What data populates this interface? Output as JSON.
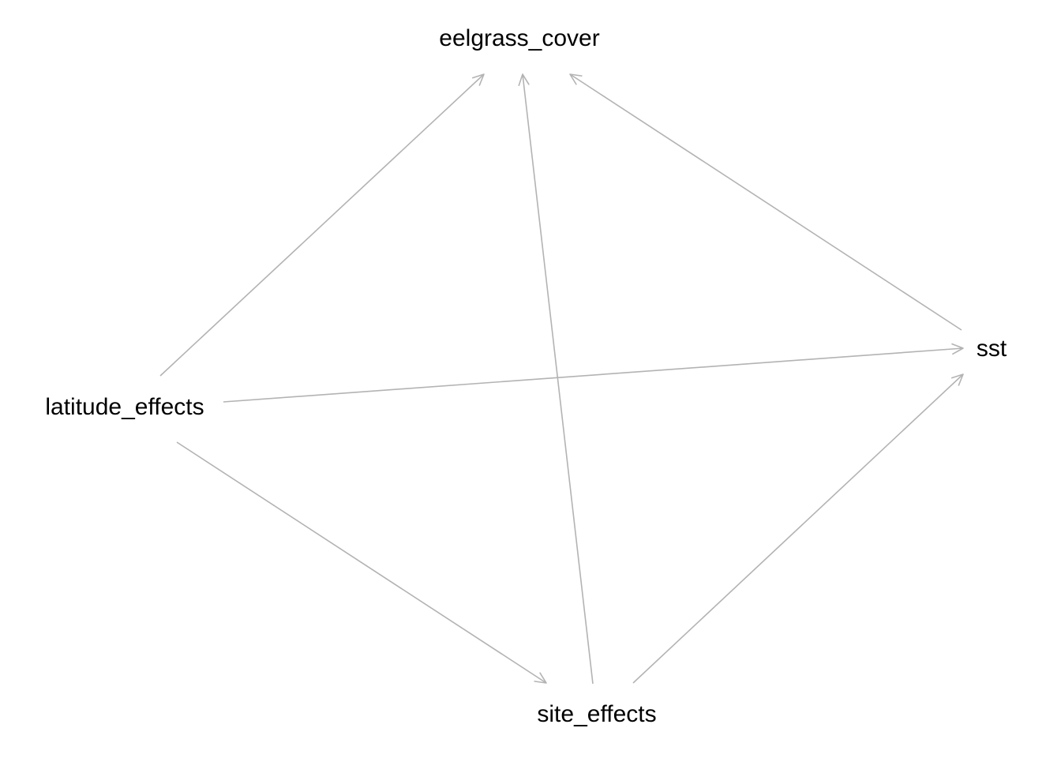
{
  "diagram": {
    "nodes": [
      {
        "id": "eelgrass_cover",
        "label": "eelgrass_cover"
      },
      {
        "id": "latitude_effects",
        "label": "latitude_effects"
      },
      {
        "id": "sst",
        "label": "sst"
      },
      {
        "id": "site_effects",
        "label": "site_effects"
      }
    ],
    "edges": [
      {
        "from": "latitude_effects",
        "to": "eelgrass_cover"
      },
      {
        "from": "latitude_effects",
        "to": "sst"
      },
      {
        "from": "latitude_effects",
        "to": "site_effects"
      },
      {
        "from": "site_effects",
        "to": "eelgrass_cover"
      },
      {
        "from": "site_effects",
        "to": "sst"
      },
      {
        "from": "sst",
        "to": "eelgrass_cover"
      }
    ],
    "edge_color": "#b3b3b3",
    "label_color": "#000000"
  }
}
